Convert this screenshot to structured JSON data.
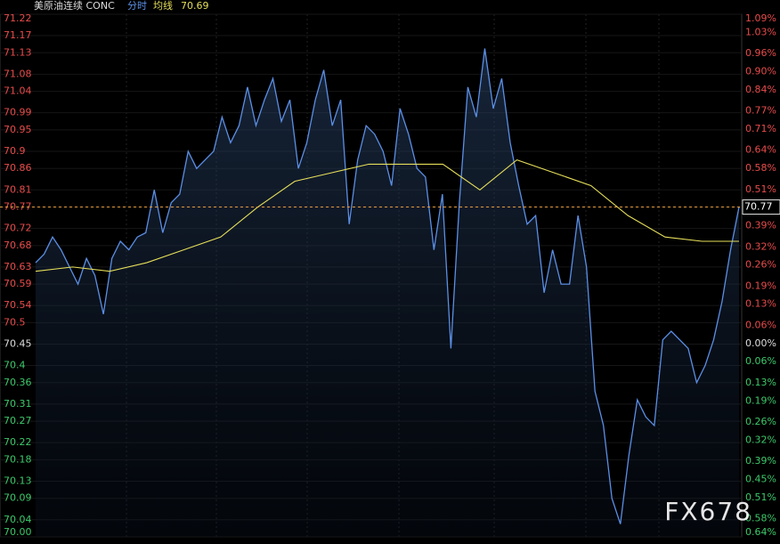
{
  "header": {
    "symbol": "美原油连续 CONC",
    "mode": "分时",
    "avg_label": "均线",
    "avg_value": 70.69
  },
  "watermark": "FX678",
  "chart_data": {
    "type": "line",
    "ylim": [
      70.0,
      71.22
    ],
    "yticks": [
      71.22,
      71.17,
      71.13,
      71.08,
      71.04,
      70.99,
      70.95,
      70.9,
      70.86,
      70.81,
      70.77,
      70.72,
      70.68,
      70.63,
      70.59,
      70.54,
      70.5,
      70.45,
      70.4,
      70.36,
      70.31,
      70.27,
      70.22,
      70.18,
      70.13,
      70.09,
      70.04,
      {
        "value": 70.0,
        "label": "70.00"
      }
    ],
    "base": 70.45,
    "y2lim": [
      -0.64,
      1.09
    ],
    "y2ticks": [
      {
        "value": 1.09,
        "label": "1.09%"
      },
      {
        "value": 1.03,
        "label": "1.03%"
      },
      {
        "value": 0.96,
        "label": "0.96%"
      },
      {
        "value": 0.9,
        "label": "0.90%"
      },
      {
        "value": 0.84,
        "label": "0.84%"
      },
      {
        "value": 0.77,
        "label": "0.77%"
      },
      {
        "value": 0.71,
        "label": "0.71%"
      },
      {
        "value": 0.64,
        "label": "0.64%"
      },
      {
        "value": 0.58,
        "label": "0.58%"
      },
      {
        "value": 0.51,
        "label": "0.51%"
      },
      {
        "value": 0.45,
        "label": "0.45%"
      },
      {
        "value": 0.39,
        "label": "0.39%"
      },
      {
        "value": 0.32,
        "label": "0.32%"
      },
      {
        "value": 0.26,
        "label": "0.26%"
      },
      {
        "value": 0.19,
        "label": "0.19%"
      },
      {
        "value": 0.13,
        "label": "0.13%"
      },
      {
        "value": 0.06,
        "label": "0.06%"
      },
      {
        "value": 0,
        "label": "0.00%"
      },
      {
        "value": -0.06,
        "label": "0.06%"
      },
      {
        "value": -0.13,
        "label": "0.13%"
      },
      {
        "value": -0.19,
        "label": "0.19%"
      },
      {
        "value": -0.26,
        "label": "0.26%"
      },
      {
        "value": -0.32,
        "label": "0.32%"
      },
      {
        "value": -0.39,
        "label": "0.39%"
      },
      {
        "value": -0.45,
        "label": "0.45%"
      },
      {
        "value": -0.51,
        "label": "0.51%"
      },
      {
        "value": -0.58,
        "label": "0.58%"
      },
      {
        "value": -0.64,
        "label": "0.64%"
      }
    ],
    "last_price": 70.77,
    "series": [
      {
        "color": "#5b8fe6",
        "values": [
          70.64,
          70.66,
          70.7,
          70.67,
          70.63,
          70.59,
          70.65,
          70.61,
          70.52,
          70.65,
          70.69,
          70.67,
          70.7,
          70.71,
          70.81,
          70.71,
          70.78,
          70.8,
          70.9,
          70.86,
          70.88,
          70.9,
          70.98,
          70.92,
          70.96,
          71.05,
          70.96,
          71.02,
          71.07,
          70.97,
          71.02,
          70.86,
          70.92,
          71.02,
          71.09,
          70.96,
          71.02,
          70.73,
          70.88,
          70.96,
          70.94,
          70.9,
          70.82,
          71.0,
          70.94,
          70.86,
          70.84,
          70.67,
          70.8,
          70.44,
          70.78,
          71.05,
          70.98,
          71.14,
          71.0,
          71.07,
          70.92,
          70.82,
          70.73,
          70.75,
          70.57,
          70.67,
          70.59,
          70.59,
          70.75,
          70.63,
          70.34,
          70.26,
          70.09,
          70.03,
          70.19,
          70.32,
          70.28,
          70.26,
          70.46,
          70.48,
          70.46,
          70.44,
          70.36,
          70.4,
          70.46,
          70.55,
          70.67,
          70.77
        ]
      },
      {
        "color": "#e6df5a",
        "values": [
          70.62,
          70.63,
          70.62,
          70.64,
          70.67,
          70.7,
          70.77,
          70.83,
          70.85,
          70.87,
          70.87,
          70.87,
          70.81,
          70.88,
          70.85,
          70.82,
          70.75,
          70.7,
          70.69,
          70.69
        ]
      }
    ]
  }
}
